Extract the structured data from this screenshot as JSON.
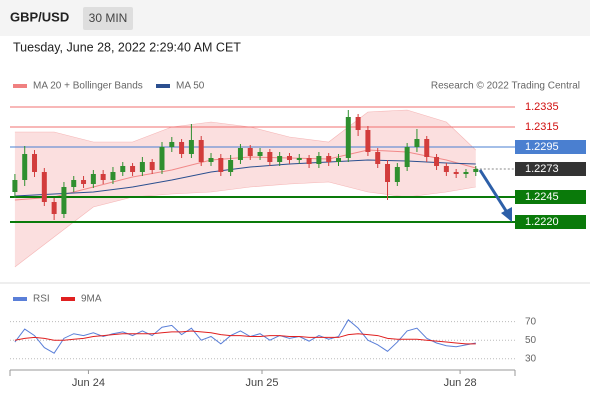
{
  "header": {
    "symbol": "GBP/USD",
    "interval": "30 MIN",
    "timestamp": "Tuesday, June 28, 2022 2:29:40 AM CET",
    "credit": "Research © 2022 Trading Central"
  },
  "chart_data": [
    {
      "type": "candlestick",
      "xlim": [
        -0.5,
        51
      ],
      "ylim": [
        1.2162,
        1.2342
      ],
      "up_color": "#2f8f2f",
      "down_color": "#d23c3c",
      "open": [
        1.225,
        1.2262,
        1.2288,
        1.227,
        1.224,
        1.2228,
        1.2255,
        1.2262,
        1.2258,
        1.2268,
        1.2262,
        1.227,
        1.2276,
        1.227,
        1.228,
        1.2272,
        1.2295,
        1.23,
        1.2288,
        1.2302,
        1.228,
        1.2284,
        1.227,
        1.2282,
        1.2294,
        1.2286,
        1.229,
        1.228,
        1.2286,
        1.2282,
        1.2284,
        1.2278,
        1.2286,
        1.228,
        1.2284,
        1.2325,
        1.2312,
        1.229,
        1.2278,
        1.226,
        1.2275,
        1.2295,
        1.2303,
        1.2285,
        1.2276,
        1.227,
        1.2268,
        1.227
      ],
      "high": [
        1.2268,
        1.2296,
        1.2292,
        1.2274,
        1.2244,
        1.226,
        1.2266,
        1.2266,
        1.2272,
        1.2272,
        1.2275,
        1.228,
        1.2279,
        1.2285,
        1.2283,
        1.23,
        1.2305,
        1.2303,
        1.2318,
        1.2306,
        1.2289,
        1.2288,
        1.2287,
        1.2298,
        1.2297,
        1.2294,
        1.2293,
        1.229,
        1.2289,
        1.2288,
        1.2287,
        1.229,
        1.2289,
        1.2288,
        1.2332,
        1.2328,
        1.2316,
        1.2294,
        1.2282,
        1.2279,
        1.2299,
        1.2313,
        1.2306,
        1.2288,
        1.2279,
        1.2273,
        1.2273,
        1.2276
      ],
      "low": [
        1.2244,
        1.2256,
        1.2265,
        1.2236,
        1.2222,
        1.2224,
        1.225,
        1.2254,
        1.2254,
        1.2258,
        1.2258,
        1.2266,
        1.2266,
        1.2266,
        1.2268,
        1.2268,
        1.229,
        1.2284,
        1.2284,
        1.2276,
        1.2276,
        1.2266,
        1.2266,
        1.2278,
        1.2282,
        1.2282,
        1.2276,
        1.2276,
        1.2278,
        1.2278,
        1.2274,
        1.2274,
        1.2276,
        1.2276,
        1.228,
        1.2306,
        1.2286,
        1.2274,
        1.2242,
        1.2256,
        1.2271,
        1.229,
        1.228,
        1.2272,
        1.2266,
        1.2264,
        1.2264,
        1.2266
      ],
      "close": [
        1.2262,
        1.2288,
        1.227,
        1.224,
        1.2228,
        1.2255,
        1.2262,
        1.2258,
        1.2268,
        1.2262,
        1.227,
        1.2276,
        1.227,
        1.228,
        1.2272,
        1.2295,
        1.23,
        1.2288,
        1.2302,
        1.228,
        1.2284,
        1.227,
        1.2282,
        1.2294,
        1.2286,
        1.229,
        1.228,
        1.2286,
        1.2282,
        1.2284,
        1.2278,
        1.2286,
        1.228,
        1.2284,
        1.2325,
        1.2312,
        1.229,
        1.2278,
        1.226,
        1.2275,
        1.2295,
        1.2303,
        1.2285,
        1.2276,
        1.227,
        1.2268,
        1.227,
        1.2273
      ],
      "bands": {
        "name": "MA 20 + Bollinger Bands",
        "color": "#f08080",
        "x": [
          0,
          4,
          8,
          12,
          16,
          20,
          24,
          28,
          32,
          36,
          40,
          44,
          47
        ],
        "upper": [
          1.231,
          1.231,
          1.23,
          1.23,
          1.2315,
          1.232,
          1.2315,
          1.2305,
          1.23,
          1.233,
          1.2332,
          1.232,
          1.2292
        ],
        "middle": [
          1.2242,
          1.2245,
          1.2255,
          1.2265,
          1.2272,
          1.2282,
          1.2285,
          1.2284,
          1.2283,
          1.2292,
          1.229,
          1.2282,
          1.2274
        ],
        "lower": [
          1.2175,
          1.2205,
          1.2235,
          1.2245,
          1.2248,
          1.225,
          1.2255,
          1.2258,
          1.226,
          1.225,
          1.2245,
          1.225,
          1.2255
        ]
      },
      "ma": {
        "name": "MA 50",
        "color": "#2b4f8f",
        "x": [
          0,
          4,
          8,
          12,
          16,
          20,
          24,
          28,
          32,
          36,
          40,
          44,
          47
        ],
        "values": [
          1.2246,
          1.2248,
          1.225,
          1.2255,
          1.2262,
          1.227,
          1.2275,
          1.2278,
          1.228,
          1.2282,
          1.2281,
          1.2279,
          1.2278
        ]
      },
      "levels": [
        {
          "value": 1.2335,
          "label": "1.2335",
          "style": "resistance",
          "color": "#f07070"
        },
        {
          "value": 1.2315,
          "label": "1.2315",
          "style": "resistance",
          "color": "#f07070"
        },
        {
          "value": 1.2295,
          "label": "1.2295",
          "style": "pivot",
          "color": "#4a7fd0"
        },
        {
          "value": 1.2273,
          "label": "1.2273",
          "style": "current",
          "color": "#333333"
        },
        {
          "value": 1.2245,
          "label": "1.2245",
          "style": "support",
          "color": "#0a7a0a"
        },
        {
          "value": 1.222,
          "label": "1.2220",
          "style": "support",
          "color": "#0a7a0a"
        }
      ]
    },
    {
      "type": "line",
      "xlim": [
        -0.5,
        51
      ],
      "ylim": [
        20,
        88
      ],
      "yticks": [
        30,
        50,
        70
      ],
      "series": [
        {
          "name": "RSI",
          "color": "#5a7fd8",
          "values": [
            48,
            62,
            55,
            42,
            36,
            52,
            57,
            55,
            58,
            54,
            57,
            59,
            55,
            60,
            55,
            64,
            66,
            56,
            63,
            50,
            54,
            46,
            55,
            60,
            54,
            57,
            50,
            55,
            52,
            54,
            49,
            55,
            51,
            54,
            72,
            63,
            50,
            45,
            38,
            48,
            60,
            63,
            52,
            47,
            44,
            43,
            45,
            47
          ]
        },
        {
          "name": "9MA",
          "color": "#e02020",
          "values": [
            50,
            52,
            53,
            52,
            50,
            50,
            51,
            52,
            54,
            55,
            56,
            57,
            57,
            57,
            57,
            58,
            59,
            59,
            60,
            59,
            58,
            56,
            55,
            55,
            54,
            54,
            55,
            55,
            54,
            54,
            53,
            53,
            53,
            53,
            56,
            57,
            56,
            55,
            52,
            51,
            51,
            51,
            50,
            49,
            48,
            47,
            46,
            46
          ]
        }
      ],
      "xticks": [
        {
          "value": 7.5,
          "label": "Jun 24"
        },
        {
          "value": 25.2,
          "label": "Jun 25"
        },
        {
          "value": 45.4,
          "label": "Jun 28"
        }
      ]
    }
  ]
}
